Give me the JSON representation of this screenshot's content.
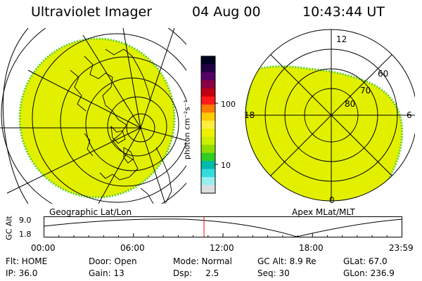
{
  "header": {
    "instrument": "Ultraviolet Imager",
    "date": "04 Aug 00",
    "time": "10:43:44 UT"
  },
  "left_panel": {
    "caption": "Geographic Lat/Lon"
  },
  "right_panel": {
    "caption": "Apex MLat/MLT",
    "mlt_labels": {
      "top": "12",
      "left": "18",
      "right": "6",
      "bottom": "0"
    },
    "lat_labels": [
      "60",
      "70",
      "80"
    ]
  },
  "colorbar": {
    "unit": "photon cm⁻²s⁻¹",
    "ticks": [
      "100",
      "10"
    ],
    "colors": [
      "#000022",
      "#220044",
      "#550066",
      "#8a0040",
      "#c00010",
      "#ff1a1a",
      "#ff7a00",
      "#ffcc00",
      "#ffee40",
      "#eef000",
      "#ccee00",
      "#8fdd00",
      "#33cc22",
      "#00bbaa",
      "#33dddd",
      "#99eeee",
      "#dddddd"
    ]
  },
  "colors": {
    "emission": "#e2f000",
    "emission_edge": "#5ecf2a",
    "marker": "#ff0000"
  },
  "altitude_plot": {
    "ylabel": "GC Alt",
    "ytick_top": "9.0",
    "ytick_bottom": "1.8",
    "xticks": [
      "00:00",
      "06:00",
      "12:00",
      "18:00",
      "23:59"
    ],
    "current_time_hours": 10.73
  },
  "info": {
    "row1": [
      "Flt: HOME",
      "Door: Open",
      "Mode: Normal",
      "GC Alt: 8.9 Re",
      "GLat:  67.0"
    ],
    "row2": [
      "IP: 36.0",
      "Gain: 13",
      "Dsp:     2.5",
      "Seq: 30",
      "GLon: 236.9"
    ]
  }
}
